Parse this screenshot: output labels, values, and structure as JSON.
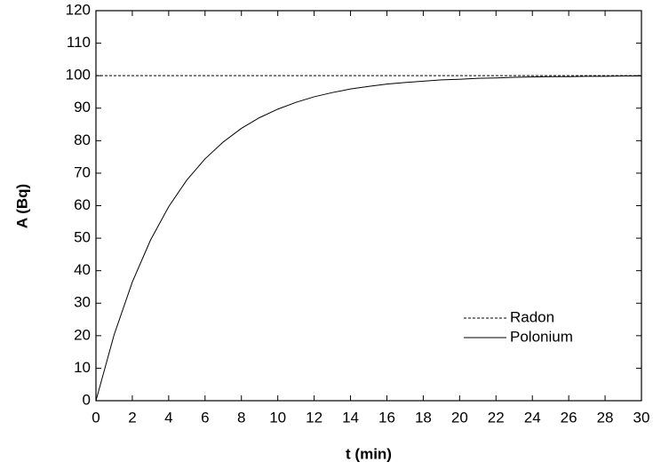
{
  "chart_data": {
    "type": "line",
    "xlabel": "t (min)",
    "ylabel": "A (Bq)",
    "x": [
      0,
      1,
      2,
      3,
      4,
      5,
      6,
      7,
      8,
      9,
      10,
      11,
      12,
      13,
      14,
      15,
      16,
      17,
      18,
      19,
      20,
      21,
      22,
      23,
      24,
      25,
      26,
      27,
      28,
      29,
      30
    ],
    "series": [
      {
        "name": "Radon",
        "color": "#000000",
        "dash": "dashed",
        "values": [
          100,
          100,
          100,
          100,
          100,
          100,
          100,
          100,
          100,
          100,
          100,
          100,
          100,
          100,
          100,
          100,
          100,
          100,
          100,
          100,
          100,
          100,
          100,
          100,
          100,
          100,
          100,
          100,
          100,
          100,
          100
        ]
      },
      {
        "name": "Polonium",
        "color": "#000000",
        "dash": "solid",
        "values": [
          0,
          20.3,
          36.5,
          49.4,
          59.7,
          67.9,
          74.4,
          79.6,
          83.8,
          87.1,
          89.7,
          91.8,
          93.5,
          94.8,
          95.9,
          96.7,
          97.4,
          97.9,
          98.3,
          98.7,
          98.9,
          99.2,
          99.3,
          99.5,
          99.6,
          99.7,
          99.7,
          99.8,
          99.8,
          99.9,
          99.9
        ]
      }
    ],
    "xlim": [
      0,
      30
    ],
    "xticks": [
      0,
      2,
      4,
      6,
      8,
      10,
      12,
      14,
      16,
      18,
      20,
      22,
      24,
      26,
      28,
      30
    ],
    "ylim": [
      0,
      120
    ],
    "yticks": [
      0,
      10,
      20,
      30,
      40,
      50,
      60,
      70,
      80,
      90,
      100,
      110,
      120
    ],
    "legend": "lower right"
  }
}
